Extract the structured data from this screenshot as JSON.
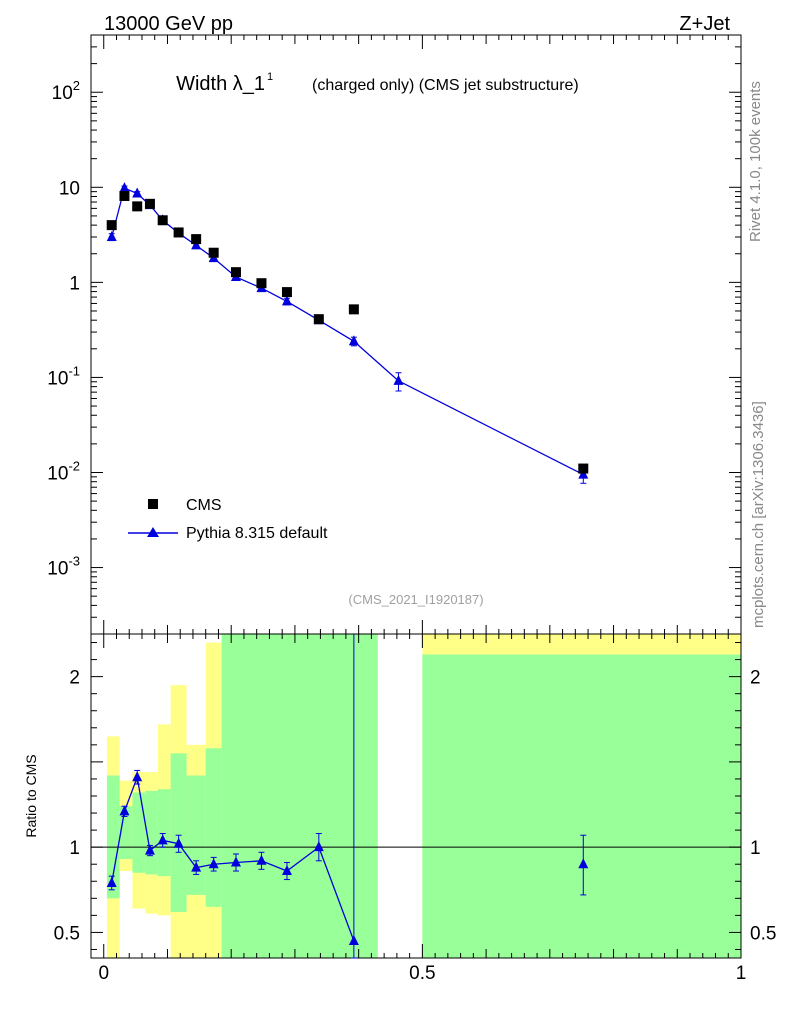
{
  "header": {
    "left": "13000 GeV pp",
    "right": "Z+Jet"
  },
  "side_labels": {
    "top": "Rivet 4.1.0,  100k events",
    "bottom": "mcplots.cern.ch [arXiv:1306.3436]"
  },
  "analysis_id": "(CMS_2021_I1920187)",
  "chart_data": [
    {
      "type": "scatter",
      "title": "Width λ_1",
      "title_sup": "1",
      "subtitle": "(charged only) (CMS jet substructure)",
      "xlim": [
        -0.02,
        1.0
      ],
      "ylim": [
        0.0002,
        400
      ],
      "yscale": "log",
      "ytick_labels": [
        "10^-3",
        "10^-2",
        "10^-1",
        "1",
        "10",
        "10^2"
      ],
      "legend": [
        "CMS",
        "Pythia 8.315 default"
      ],
      "legend_position": "bottom-left",
      "series": [
        {
          "name": "CMS",
          "marker": "square",
          "color": "#000000",
          "x": [
            0.0125,
            0.0325,
            0.0525,
            0.0725,
            0.0925,
            0.1175,
            0.145,
            0.1725,
            0.2075,
            0.2475,
            0.2875,
            0.3375,
            0.3925,
            0.7525
          ],
          "y": [
            4.0,
            8.1,
            6.3,
            6.7,
            4.5,
            3.35,
            2.85,
            2.05,
            1.28,
            0.98,
            0.79,
            0.41,
            0.52,
            0.011
          ]
        },
        {
          "name": "Pythia 8.315 default",
          "marker": "triangle",
          "color": "#0000dd",
          "line": true,
          "x": [
            0.0125,
            0.0325,
            0.0525,
            0.0725,
            0.0925,
            0.1175,
            0.145,
            0.1725,
            0.2075,
            0.2475,
            0.2875,
            0.3375,
            0.3925,
            0.4625,
            0.7525
          ],
          "y": [
            3.0,
            9.8,
            8.6,
            6.5,
            4.5,
            3.3,
            2.45,
            1.8,
            1.14,
            0.87,
            0.63,
            0.4,
            0.24,
            0.092,
            0.0095
          ],
          "yerr_lo": [
            0.25,
            0.5,
            0.4,
            0.3,
            0.2,
            0.15,
            0.12,
            0.1,
            0.07,
            0.06,
            0.05,
            0.03,
            0.025,
            0.02,
            0.0018
          ],
          "yerr_hi": [
            0.25,
            0.5,
            0.4,
            0.3,
            0.2,
            0.15,
            0.12,
            0.1,
            0.07,
            0.06,
            0.05,
            0.03,
            0.025,
            0.02,
            0.0018
          ]
        }
      ]
    },
    {
      "type": "line",
      "ylabel": "Ratio to CMS",
      "xlim": [
        -0.02,
        1.0
      ],
      "ylim": [
        0.35,
        2.25
      ],
      "x_tick_labels": [
        "0",
        "0.5",
        "1"
      ],
      "y_tick_labels": [
        "0.5",
        "1",
        "2"
      ],
      "reference_line": 1.0,
      "bands": [
        {
          "x0": 0.005,
          "x1": 0.025,
          "yellow": [
            0.35,
            1.65
          ],
          "green": [
            0.7,
            1.42
          ]
        },
        {
          "x0": 0.025,
          "x1": 0.045,
          "yellow": [
            0.86,
            1.39
          ],
          "green": [
            0.93,
            1.24
          ]
        },
        {
          "x0": 0.045,
          "x1": 0.065,
          "yellow": [
            0.64,
            1.44
          ],
          "green": [
            0.85,
            1.32
          ]
        },
        {
          "x0": 0.065,
          "x1": 0.085,
          "yellow": [
            0.61,
            1.44
          ],
          "green": [
            0.84,
            1.33
          ]
        },
        {
          "x0": 0.085,
          "x1": 0.105,
          "yellow": [
            0.6,
            1.72
          ],
          "green": [
            0.83,
            1.34
          ]
        },
        {
          "x0": 0.105,
          "x1": 0.13,
          "yellow": [
            0.35,
            1.95
          ],
          "green": [
            0.62,
            1.55
          ]
        },
        {
          "x0": 0.13,
          "x1": 0.16,
          "yellow": [
            0.35,
            1.6
          ],
          "green": [
            0.72,
            1.42
          ]
        },
        {
          "x0": 0.16,
          "x1": 0.185,
          "yellow": [
            0.35,
            2.2
          ],
          "green": [
            0.65,
            1.58
          ]
        },
        {
          "x0": 0.185,
          "x1": 0.43,
          "yellow": [
            0.35,
            2.25
          ],
          "green": [
            0.35,
            2.25
          ]
        },
        {
          "x0": 0.5,
          "x1": 1.0,
          "yellow": [
            0.35,
            2.25
          ],
          "green": [
            0.35,
            2.13
          ]
        }
      ],
      "series": [
        {
          "name": "Pythia 8.315 default",
          "color": "#0000dd",
          "x": [
            0.0125,
            0.0325,
            0.0525,
            0.0725,
            0.0925,
            0.1175,
            0.145,
            0.1725,
            0.2075,
            0.2475,
            0.2875,
            0.3375,
            0.3925,
            0.7525
          ],
          "y": [
            0.79,
            1.21,
            1.41,
            0.98,
            1.04,
            1.02,
            0.88,
            0.9,
            0.91,
            0.92,
            0.86,
            1.0,
            0.45,
            0.9
          ],
          "yerr_lo": [
            0.04,
            0.03,
            0.04,
            0.03,
            0.04,
            0.05,
            0.04,
            0.04,
            0.05,
            0.05,
            0.05,
            0.08,
            0.1,
            0.18
          ],
          "yerr_hi": [
            0.04,
            0.03,
            0.04,
            0.03,
            0.04,
            0.05,
            0.04,
            0.04,
            0.05,
            0.05,
            0.05,
            0.08,
            1.8,
            0.17
          ]
        }
      ]
    }
  ]
}
